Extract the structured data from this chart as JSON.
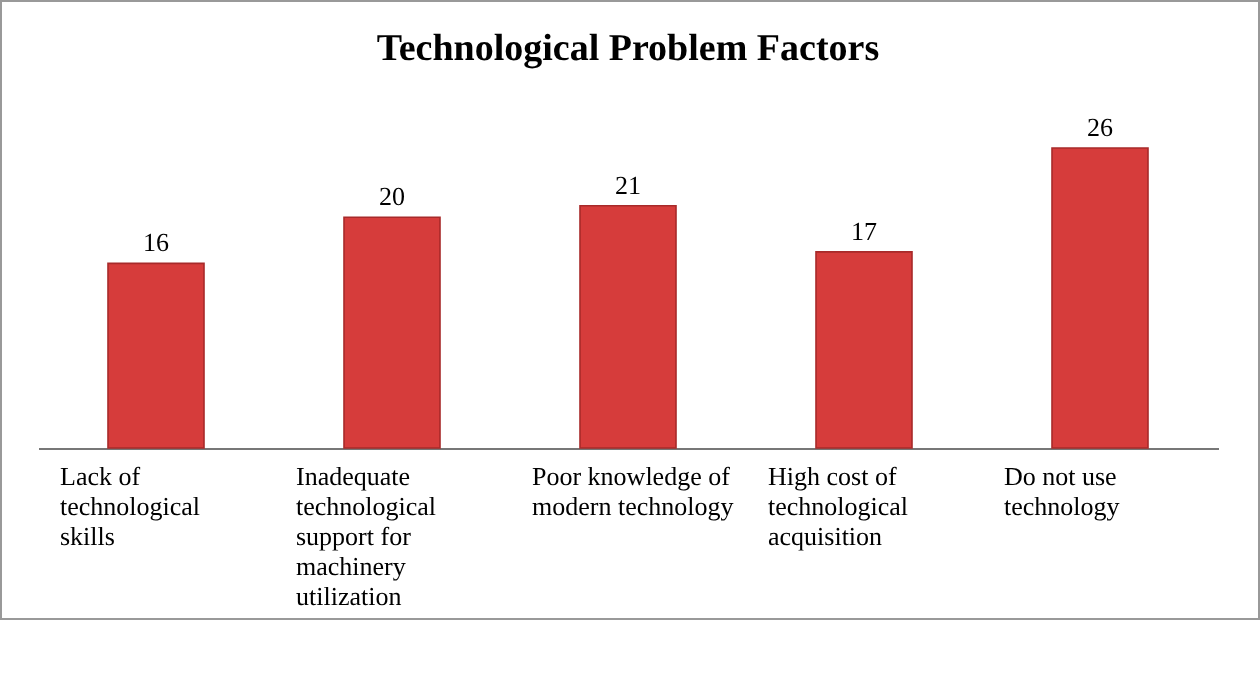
{
  "chart_data": {
    "type": "bar",
    "title": "Technological Problem Factors",
    "categories": [
      "Lack of technological skills",
      "Inadequate technological support for machinery utilization",
      "Poor knowledge of modern technology",
      "High cost of technological acquisition",
      "Do not use technology"
    ],
    "values": [
      16,
      20,
      21,
      17,
      26
    ],
    "color": "#d63c3b",
    "data_labels": true
  }
}
